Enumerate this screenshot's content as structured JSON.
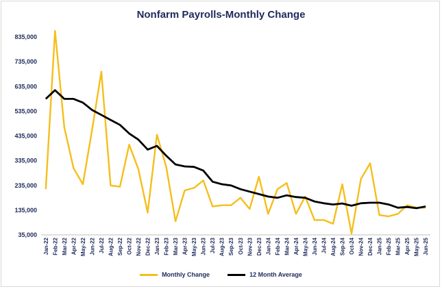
{
  "chart_data": {
    "type": "line",
    "title": "Nonfarm Payrolls-Monthly Change",
    "xlabel": "",
    "ylabel": "",
    "ylim": [
      35000,
      885000
    ],
    "yticks": [
      35000,
      135000,
      235000,
      335000,
      435000,
      535000,
      635000,
      735000,
      835000
    ],
    "ytick_labels": [
      "35,000",
      "135,000",
      "235,000",
      "335,000",
      "435,000",
      "535,000",
      "635,000",
      "735,000",
      "835,000"
    ],
    "categories": [
      "Jan-22",
      "Feb-22",
      "Mar-22",
      "Apr-22",
      "May-22",
      "Jun-22",
      "Jul-22",
      "Aug-22",
      "Sep-22",
      "Oct-22",
      "Nov-22",
      "Dec-22",
      "Jan-23",
      "Feb-23",
      "Mar-23",
      "Apr-23",
      "May-23",
      "Jun-23",
      "Jul-23",
      "Aug-23",
      "Sep-23",
      "Oct-23",
      "Nov-23",
      "Dec-23",
      "Jan-24",
      "Feb-24",
      "Mar-24",
      "Apr-24",
      "May-24",
      "Jun-24",
      "Jul-24",
      "Aug-24",
      "Sep-24",
      "Oct-24",
      "Nov-24",
      "Dec-24",
      "Jan-25",
      "Feb-25",
      "Mar-25",
      "Apr-25",
      "May-25",
      "Jun-25"
    ],
    "series": [
      {
        "name": "Monthly Change",
        "color": "#f5be1a",
        "values": [
          220000,
          860000,
          470000,
          305000,
          240000,
          460000,
          695000,
          235000,
          230000,
          400000,
          300000,
          125000,
          440000,
          310000,
          90000,
          215000,
          225000,
          255000,
          150000,
          155000,
          155000,
          185000,
          140000,
          270000,
          120000,
          220000,
          245000,
          120000,
          190000,
          95000,
          95000,
          80000,
          240000,
          40000,
          260000,
          325000,
          115000,
          110000,
          120000,
          155000,
          145000,
          145000
        ]
      },
      {
        "name": "12 Month Average",
        "color": "#000000",
        "values": [
          585000,
          620000,
          585000,
          585000,
          570000,
          540000,
          520000,
          500000,
          480000,
          445000,
          420000,
          380000,
          395000,
          355000,
          320000,
          312000,
          310000,
          295000,
          250000,
          240000,
          235000,
          220000,
          210000,
          200000,
          190000,
          185000,
          195000,
          188000,
          185000,
          170000,
          163000,
          158000,
          162000,
          153000,
          163000,
          165000,
          165000,
          158000,
          145000,
          148000,
          143000,
          150000
        ]
      }
    ],
    "grid": false,
    "legend": "bottom"
  }
}
